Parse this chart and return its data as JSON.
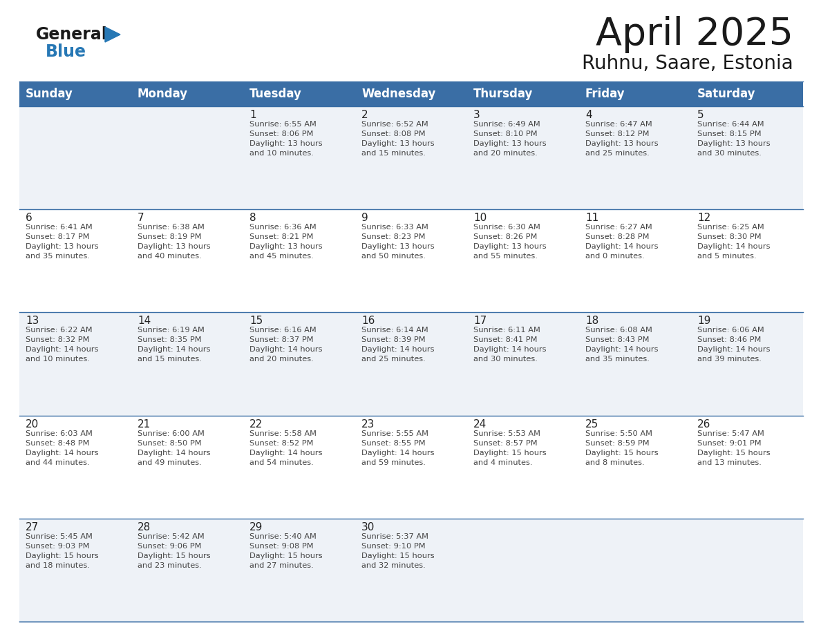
{
  "title": "April 2025",
  "subtitle": "Ruhnu, Saare, Estonia",
  "header_bg_color": "#3a6ea5",
  "header_text_color": "#ffffff",
  "cell_bg_odd": "#eef2f7",
  "cell_bg_even": "#ffffff",
  "day_headers": [
    "Sunday",
    "Monday",
    "Tuesday",
    "Wednesday",
    "Thursday",
    "Friday",
    "Saturday"
  ],
  "weeks": [
    [
      {
        "day": "",
        "info": ""
      },
      {
        "day": "",
        "info": ""
      },
      {
        "day": "1",
        "info": "Sunrise: 6:55 AM\nSunset: 8:06 PM\nDaylight: 13 hours\nand 10 minutes."
      },
      {
        "day": "2",
        "info": "Sunrise: 6:52 AM\nSunset: 8:08 PM\nDaylight: 13 hours\nand 15 minutes."
      },
      {
        "day": "3",
        "info": "Sunrise: 6:49 AM\nSunset: 8:10 PM\nDaylight: 13 hours\nand 20 minutes."
      },
      {
        "day": "4",
        "info": "Sunrise: 6:47 AM\nSunset: 8:12 PM\nDaylight: 13 hours\nand 25 minutes."
      },
      {
        "day": "5",
        "info": "Sunrise: 6:44 AM\nSunset: 8:15 PM\nDaylight: 13 hours\nand 30 minutes."
      }
    ],
    [
      {
        "day": "6",
        "info": "Sunrise: 6:41 AM\nSunset: 8:17 PM\nDaylight: 13 hours\nand 35 minutes."
      },
      {
        "day": "7",
        "info": "Sunrise: 6:38 AM\nSunset: 8:19 PM\nDaylight: 13 hours\nand 40 minutes."
      },
      {
        "day": "8",
        "info": "Sunrise: 6:36 AM\nSunset: 8:21 PM\nDaylight: 13 hours\nand 45 minutes."
      },
      {
        "day": "9",
        "info": "Sunrise: 6:33 AM\nSunset: 8:23 PM\nDaylight: 13 hours\nand 50 minutes."
      },
      {
        "day": "10",
        "info": "Sunrise: 6:30 AM\nSunset: 8:26 PM\nDaylight: 13 hours\nand 55 minutes."
      },
      {
        "day": "11",
        "info": "Sunrise: 6:27 AM\nSunset: 8:28 PM\nDaylight: 14 hours\nand 0 minutes."
      },
      {
        "day": "12",
        "info": "Sunrise: 6:25 AM\nSunset: 8:30 PM\nDaylight: 14 hours\nand 5 minutes."
      }
    ],
    [
      {
        "day": "13",
        "info": "Sunrise: 6:22 AM\nSunset: 8:32 PM\nDaylight: 14 hours\nand 10 minutes."
      },
      {
        "day": "14",
        "info": "Sunrise: 6:19 AM\nSunset: 8:35 PM\nDaylight: 14 hours\nand 15 minutes."
      },
      {
        "day": "15",
        "info": "Sunrise: 6:16 AM\nSunset: 8:37 PM\nDaylight: 14 hours\nand 20 minutes."
      },
      {
        "day": "16",
        "info": "Sunrise: 6:14 AM\nSunset: 8:39 PM\nDaylight: 14 hours\nand 25 minutes."
      },
      {
        "day": "17",
        "info": "Sunrise: 6:11 AM\nSunset: 8:41 PM\nDaylight: 14 hours\nand 30 minutes."
      },
      {
        "day": "18",
        "info": "Sunrise: 6:08 AM\nSunset: 8:43 PM\nDaylight: 14 hours\nand 35 minutes."
      },
      {
        "day": "19",
        "info": "Sunrise: 6:06 AM\nSunset: 8:46 PM\nDaylight: 14 hours\nand 39 minutes."
      }
    ],
    [
      {
        "day": "20",
        "info": "Sunrise: 6:03 AM\nSunset: 8:48 PM\nDaylight: 14 hours\nand 44 minutes."
      },
      {
        "day": "21",
        "info": "Sunrise: 6:00 AM\nSunset: 8:50 PM\nDaylight: 14 hours\nand 49 minutes."
      },
      {
        "day": "22",
        "info": "Sunrise: 5:58 AM\nSunset: 8:52 PM\nDaylight: 14 hours\nand 54 minutes."
      },
      {
        "day": "23",
        "info": "Sunrise: 5:55 AM\nSunset: 8:55 PM\nDaylight: 14 hours\nand 59 minutes."
      },
      {
        "day": "24",
        "info": "Sunrise: 5:53 AM\nSunset: 8:57 PM\nDaylight: 15 hours\nand 4 minutes."
      },
      {
        "day": "25",
        "info": "Sunrise: 5:50 AM\nSunset: 8:59 PM\nDaylight: 15 hours\nand 8 minutes."
      },
      {
        "day": "26",
        "info": "Sunrise: 5:47 AM\nSunset: 9:01 PM\nDaylight: 15 hours\nand 13 minutes."
      }
    ],
    [
      {
        "day": "27",
        "info": "Sunrise: 5:45 AM\nSunset: 9:03 PM\nDaylight: 15 hours\nand 18 minutes."
      },
      {
        "day": "28",
        "info": "Sunrise: 5:42 AM\nSunset: 9:06 PM\nDaylight: 15 hours\nand 23 minutes."
      },
      {
        "day": "29",
        "info": "Sunrise: 5:40 AM\nSunset: 9:08 PM\nDaylight: 15 hours\nand 27 minutes."
      },
      {
        "day": "30",
        "info": "Sunrise: 5:37 AM\nSunset: 9:10 PM\nDaylight: 15 hours\nand 32 minutes."
      },
      {
        "day": "",
        "info": ""
      },
      {
        "day": "",
        "info": ""
      },
      {
        "day": "",
        "info": ""
      }
    ]
  ],
  "logo_color_general": "#1a1a1a",
  "logo_color_blue": "#2778b5",
  "logo_color_triangle": "#2778b5",
  "title_color": "#1a1a1a",
  "subtitle_color": "#1a1a1a",
  "divider_color": "#3a6ea5",
  "cell_text_color": "#444444",
  "day_num_color": "#222222",
  "title_fontsize": 40,
  "subtitle_fontsize": 20,
  "header_fontsize": 12,
  "day_num_fontsize": 11,
  "cell_text_fontsize": 8.2
}
